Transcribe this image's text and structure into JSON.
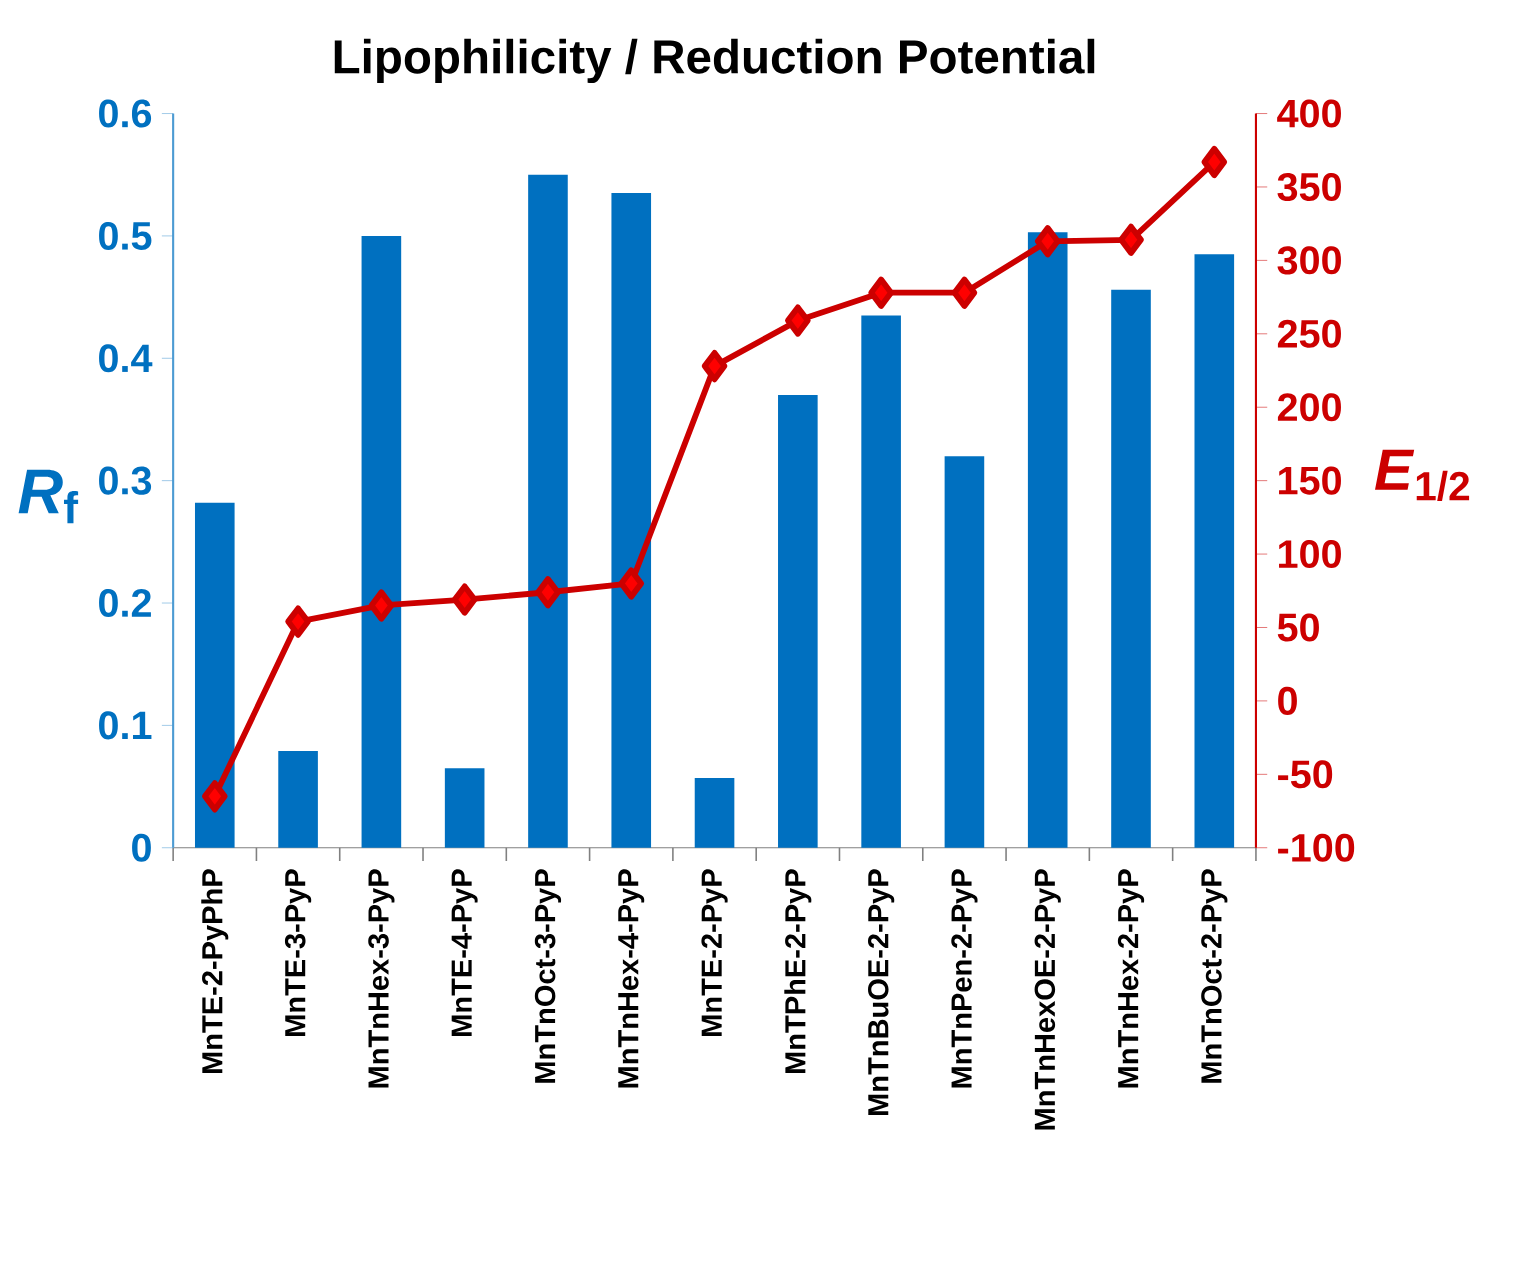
{
  "chart_data": {
    "type": "bar",
    "title": "Lipophilicity / Reduction Potential",
    "ylabel": "*R*$_{f}$",
    "y2label": "*E*$_{1/2}$",
    "categories": [
      "MnTE-2-PyPhP",
      "MnTE-3-PyP",
      "MnTnHex-3-PyP",
      "MnTE-4-PyP",
      "MnTnOct-3-PyP",
      "MnTnHex-4-PyP",
      "MnTE-2-PyP",
      "MnTPhE-2-PyP",
      "MnTnBuOE-2-PyP",
      "MnTnPen-2-PyP",
      "MnTnHexOE-2-PyP",
      "MnTnHex-2-PyP",
      "MnTnOct-2-PyP"
    ],
    "series": [
      {
        "color": "#0070c0",
        "values": [
          0.282,
          0.079,
          0.5,
          0.065,
          0.55,
          0.535,
          0.057,
          0.37,
          0.435,
          0.32,
          0.503,
          0.456,
          0.485
        ]
      },
      {
        "type": "line",
        "axis": "y2",
        "color": "#cc0000",
        "marker": "diamond",
        "values": [
          -65,
          54,
          65,
          69,
          74,
          80,
          228,
          259,
          278,
          278,
          313,
          314,
          367
        ]
      }
    ],
    "ylim": [
      0,
      0.6
    ],
    "yticks": [
      0,
      0.1,
      0.2,
      0.3,
      0.4,
      0.5,
      0.6
    ],
    "y2lim": [
      -100,
      400
    ],
    "y2ticks": [
      -100,
      -50,
      0,
      50,
      100,
      150,
      200,
      250,
      300,
      350,
      400
    ]
  }
}
